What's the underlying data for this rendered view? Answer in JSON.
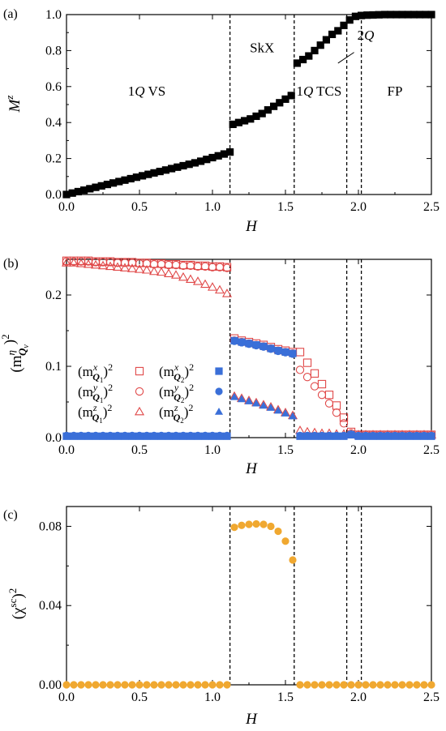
{
  "chart_data": [
    {
      "type": "scatter",
      "panel_label": "(a)",
      "xlabel": "H",
      "ylabel": "M",
      "ylabel_sup": "z",
      "xlim": [
        0.0,
        2.5
      ],
      "ylim": [
        0.0,
        1.0
      ],
      "xticks": [
        "0.0",
        "0.5",
        "1.0",
        "1.5",
        "2.0",
        "2.5"
      ],
      "yticks": [
        "0.0",
        "0.2",
        "0.4",
        "0.6",
        "0.8",
        "1.0"
      ],
      "ytick_values": [
        0.0,
        0.2,
        0.4,
        0.6,
        0.8,
        1.0
      ],
      "boundaries": [
        1.12,
        1.56,
        1.92,
        2.02
      ],
      "annotations": [
        {
          "text": "1",
          "italic": "Q",
          "rest": " VS",
          "x": 0.55,
          "y": 0.55
        },
        {
          "text": "SkX",
          "italic": "",
          "rest": "",
          "x": 1.34,
          "y": 0.79
        },
        {
          "text": "1",
          "italic": "Q",
          "rest": " TCS",
          "x": 1.73,
          "y": 0.55
        },
        {
          "text": "2",
          "italic": "Q",
          "rest": "",
          "x": 2.05,
          "y": 0.86
        },
        {
          "text": "FP",
          "italic": "",
          "rest": "",
          "x": 2.25,
          "y": 0.55
        }
      ],
      "series": [
        {
          "name": "M^z",
          "marker": "filled-square",
          "color": "#000000",
          "x": [
            0.0,
            0.04,
            0.08,
            0.12,
            0.16,
            0.2,
            0.24,
            0.28,
            0.32,
            0.36,
            0.4,
            0.44,
            0.48,
            0.52,
            0.56,
            0.6,
            0.64,
            0.68,
            0.72,
            0.76,
            0.8,
            0.84,
            0.88,
            0.92,
            0.96,
            1.0,
            1.04,
            1.08,
            1.12,
            1.14,
            1.18,
            1.22,
            1.26,
            1.3,
            1.34,
            1.38,
            1.42,
            1.46,
            1.5,
            1.54,
            1.58,
            1.62,
            1.66,
            1.7,
            1.74,
            1.78,
            1.82,
            1.86,
            1.9,
            1.94,
            1.98,
            2.02,
            2.06,
            2.1,
            2.14,
            2.18,
            2.22,
            2.26,
            2.3,
            2.34,
            2.38,
            2.42,
            2.46,
            2.5
          ],
          "y": [
            0.0,
            0.008,
            0.016,
            0.024,
            0.032,
            0.04,
            0.048,
            0.056,
            0.064,
            0.072,
            0.08,
            0.088,
            0.096,
            0.104,
            0.112,
            0.12,
            0.128,
            0.136,
            0.144,
            0.152,
            0.16,
            0.168,
            0.176,
            0.185,
            0.195,
            0.205,
            0.215,
            0.225,
            0.236,
            0.39,
            0.4,
            0.41,
            0.42,
            0.435,
            0.45,
            0.47,
            0.49,
            0.51,
            0.53,
            0.55,
            0.73,
            0.75,
            0.77,
            0.8,
            0.83,
            0.86,
            0.89,
            0.91,
            0.94,
            0.97,
            0.99,
            0.995,
            0.997,
            0.998,
            0.999,
            1.0,
            1.0,
            1.0,
            1.0,
            1.0,
            1.0,
            1.0,
            1.0,
            1.0
          ]
        }
      ]
    },
    {
      "type": "scatter",
      "panel_label": "(b)",
      "xlabel": "H",
      "ylabel": "(m",
      "xlim": [
        0.0,
        2.5
      ],
      "ylim": [
        0.0,
        0.25
      ],
      "xticks": [
        "0.0",
        "0.5",
        "1.0",
        "1.5",
        "2.0",
        "2.5"
      ],
      "yticks": [
        "0.0",
        "0.1",
        "0.2"
      ],
      "ytick_values": [
        0.0,
        0.1,
        0.2
      ],
      "boundaries": [
        1.12,
        1.56,
        1.92,
        2.02
      ],
      "legend_position": "center-left",
      "series": [
        {
          "name": "(m^x_Q1)^2",
          "legend_sup": "x",
          "legend_sub": "1",
          "marker": "open-square",
          "color": "#e04848",
          "x": [
            0.0,
            0.05,
            0.1,
            0.15,
            0.2,
            0.25,
            0.3,
            0.35,
            0.4,
            0.45,
            0.5,
            0.55,
            0.6,
            0.65,
            0.7,
            0.75,
            0.8,
            0.85,
            0.9,
            0.95,
            1.0,
            1.05,
            1.1,
            1.15,
            1.2,
            1.25,
            1.3,
            1.35,
            1.4,
            1.45,
            1.5,
            1.55,
            1.6,
            1.65,
            1.7,
            1.75,
            1.8,
            1.85,
            1.9,
            1.95,
            2.0,
            2.05,
            2.1,
            2.15,
            2.2,
            2.25,
            2.3,
            2.35,
            2.4,
            2.45,
            2.5
          ],
          "y": [
            0.248,
            0.248,
            0.248,
            0.248,
            0.247,
            0.247,
            0.247,
            0.246,
            0.246,
            0.246,
            0.245,
            0.245,
            0.244,
            0.244,
            0.243,
            0.243,
            0.242,
            0.242,
            0.241,
            0.241,
            0.24,
            0.24,
            0.239,
            0.139,
            0.136,
            0.134,
            0.132,
            0.13,
            0.127,
            0.124,
            0.122,
            0.12,
            0.12,
            0.105,
            0.09,
            0.075,
            0.06,
            0.045,
            0.028,
            0.008,
            0.004,
            0.004,
            0.004,
            0.004,
            0.004,
            0.004,
            0.004,
            0.004,
            0.004,
            0.004,
            0.004
          ]
        },
        {
          "name": "(m^y_Q1)^2",
          "legend_sup": "y",
          "legend_sub": "1",
          "marker": "open-circle",
          "color": "#e04848",
          "x": [
            0.0,
            0.05,
            0.1,
            0.15,
            0.2,
            0.25,
            0.3,
            0.35,
            0.4,
            0.45,
            0.5,
            0.55,
            0.6,
            0.65,
            0.7,
            0.75,
            0.8,
            0.85,
            0.9,
            0.95,
            1.0,
            1.05,
            1.1,
            1.15,
            1.2,
            1.25,
            1.3,
            1.35,
            1.4,
            1.45,
            1.5,
            1.55,
            1.6,
            1.65,
            1.7,
            1.75,
            1.8,
            1.85,
            1.9,
            1.95,
            2.0,
            2.05,
            2.1,
            2.15,
            2.2,
            2.25,
            2.3,
            2.35,
            2.4,
            2.45,
            2.5
          ],
          "y": [
            0.247,
            0.247,
            0.247,
            0.247,
            0.246,
            0.246,
            0.246,
            0.245,
            0.245,
            0.245,
            0.244,
            0.244,
            0.243,
            0.243,
            0.242,
            0.242,
            0.241,
            0.241,
            0.24,
            0.24,
            0.239,
            0.239,
            0.238,
            0.136,
            0.134,
            0.132,
            0.13,
            0.128,
            0.125,
            0.122,
            0.12,
            0.118,
            0.095,
            0.085,
            0.072,
            0.06,
            0.048,
            0.035,
            0.02,
            0.006,
            0.004,
            0.004,
            0.004,
            0.004,
            0.004,
            0.004,
            0.004,
            0.004,
            0.004,
            0.004,
            0.004
          ]
        },
        {
          "name": "(m^z_Q1)^2",
          "legend_sup": "z",
          "legend_sub": "1",
          "marker": "open-triangle",
          "color": "#e04848",
          "x": [
            0.0,
            0.05,
            0.1,
            0.15,
            0.2,
            0.25,
            0.3,
            0.35,
            0.4,
            0.45,
            0.5,
            0.55,
            0.6,
            0.65,
            0.7,
            0.75,
            0.8,
            0.85,
            0.9,
            0.95,
            1.0,
            1.05,
            1.1,
            1.15,
            1.2,
            1.25,
            1.3,
            1.35,
            1.4,
            1.45,
            1.5,
            1.55,
            1.6,
            1.65,
            1.7,
            1.75,
            1.8,
            1.85,
            1.9,
            1.95,
            2.0,
            2.05,
            2.1,
            2.15,
            2.2,
            2.25,
            2.3,
            2.35,
            2.4,
            2.45,
            2.5
          ],
          "y": [
            0.245,
            0.245,
            0.244,
            0.243,
            0.242,
            0.241,
            0.24,
            0.239,
            0.238,
            0.237,
            0.236,
            0.235,
            0.233,
            0.232,
            0.23,
            0.228,
            0.225,
            0.222,
            0.219,
            0.215,
            0.211,
            0.207,
            0.202,
            0.058,
            0.055,
            0.052,
            0.049,
            0.046,
            0.043,
            0.039,
            0.035,
            0.031,
            0.01,
            0.008,
            0.007,
            0.006,
            0.006,
            0.005,
            0.005,
            0.005,
            0.004,
            0.004,
            0.004,
            0.004,
            0.004,
            0.004,
            0.004,
            0.004,
            0.004,
            0.004,
            0.004
          ]
        },
        {
          "name": "(m^x_Q2)^2",
          "legend_sup": "x",
          "legend_sub": "2",
          "marker": "filled-square",
          "color": "#3a6fd8",
          "x": [
            0.0,
            0.05,
            0.1,
            0.15,
            0.2,
            0.25,
            0.3,
            0.35,
            0.4,
            0.45,
            0.5,
            0.55,
            0.6,
            0.65,
            0.7,
            0.75,
            0.8,
            0.85,
            0.9,
            0.95,
            1.0,
            1.05,
            1.1,
            1.15,
            1.2,
            1.25,
            1.3,
            1.35,
            1.4,
            1.45,
            1.5,
            1.55,
            1.6,
            1.65,
            1.7,
            1.75,
            1.8,
            1.85,
            1.9,
            1.95,
            2.0,
            2.05,
            2.1,
            2.15,
            2.2,
            2.25,
            2.3,
            2.35,
            2.4,
            2.45,
            2.5
          ],
          "y": [
            0.002,
            0.002,
            0.002,
            0.002,
            0.002,
            0.002,
            0.002,
            0.002,
            0.002,
            0.002,
            0.002,
            0.002,
            0.002,
            0.002,
            0.002,
            0.002,
            0.002,
            0.002,
            0.002,
            0.002,
            0.002,
            0.002,
            0.002,
            0.136,
            0.134,
            0.132,
            0.13,
            0.128,
            0.125,
            0.122,
            0.12,
            0.118,
            0.002,
            0.002,
            0.002,
            0.002,
            0.002,
            0.002,
            0.002,
            0.004,
            0.002,
            0.002,
            0.002,
            0.002,
            0.002,
            0.002,
            0.002,
            0.002,
            0.002,
            0.002,
            0.002
          ]
        },
        {
          "name": "(m^y_Q2)^2",
          "legend_sup": "y",
          "legend_sub": "2",
          "marker": "filled-circle",
          "color": "#3a6fd8",
          "x": [
            0.0,
            0.05,
            0.1,
            0.15,
            0.2,
            0.25,
            0.3,
            0.35,
            0.4,
            0.45,
            0.5,
            0.55,
            0.6,
            0.65,
            0.7,
            0.75,
            0.8,
            0.85,
            0.9,
            0.95,
            1.0,
            1.05,
            1.1,
            1.15,
            1.2,
            1.25,
            1.3,
            1.35,
            1.4,
            1.45,
            1.5,
            1.55,
            1.6,
            1.65,
            1.7,
            1.75,
            1.8,
            1.85,
            1.9,
            1.95,
            2.0,
            2.05,
            2.1,
            2.15,
            2.2,
            2.25,
            2.3,
            2.35,
            2.4,
            2.45,
            2.5
          ],
          "y": [
            0.003,
            0.003,
            0.003,
            0.003,
            0.003,
            0.003,
            0.003,
            0.003,
            0.003,
            0.003,
            0.003,
            0.003,
            0.003,
            0.003,
            0.003,
            0.003,
            0.003,
            0.003,
            0.003,
            0.003,
            0.003,
            0.003,
            0.003,
            0.135,
            0.133,
            0.131,
            0.129,
            0.127,
            0.124,
            0.121,
            0.119,
            0.117,
            0.003,
            0.003,
            0.003,
            0.003,
            0.003,
            0.003,
            0.003,
            0.005,
            0.003,
            0.003,
            0.003,
            0.003,
            0.003,
            0.003,
            0.003,
            0.003,
            0.003,
            0.003,
            0.003
          ]
        },
        {
          "name": "(m^z_Q2)^2",
          "legend_sup": "z",
          "legend_sub": "2",
          "marker": "filled-triangle",
          "color": "#3a6fd8",
          "x": [
            1.15,
            1.2,
            1.25,
            1.3,
            1.35,
            1.4,
            1.45,
            1.5,
            1.55
          ],
          "y": [
            0.057,
            0.054,
            0.051,
            0.048,
            0.045,
            0.042,
            0.038,
            0.034,
            0.03
          ]
        }
      ]
    },
    {
      "type": "scatter",
      "panel_label": "(c)",
      "xlabel": "H",
      "ylabel": "(χ",
      "ylabel_sup": "sc",
      "ylabel_tail": ")",
      "ylabel_tail_sup": "2",
      "xlim": [
        0.0,
        2.5
      ],
      "ylim": [
        0.0,
        0.09
      ],
      "xticks": [
        "0.0",
        "0.5",
        "1.0",
        "1.5",
        "2.0",
        "2.5"
      ],
      "yticks": [
        "0.00",
        "0.04",
        "0.08"
      ],
      "ytick_values": [
        0.0,
        0.04,
        0.08
      ],
      "boundaries": [
        1.12,
        1.56,
        1.92,
        2.02
      ],
      "series": [
        {
          "name": "(χ^sc)^2",
          "marker": "filled-circle",
          "color": "#f0a830",
          "x": [
            0.0,
            0.05,
            0.1,
            0.15,
            0.2,
            0.25,
            0.3,
            0.35,
            0.4,
            0.45,
            0.5,
            0.55,
            0.6,
            0.65,
            0.7,
            0.75,
            0.8,
            0.85,
            0.9,
            0.95,
            1.0,
            1.05,
            1.1,
            1.15,
            1.2,
            1.25,
            1.3,
            1.35,
            1.4,
            1.45,
            1.5,
            1.55,
            1.6,
            1.65,
            1.7,
            1.75,
            1.8,
            1.85,
            1.9,
            1.95,
            2.0,
            2.05,
            2.1,
            2.15,
            2.2,
            2.25,
            2.3,
            2.35,
            2.4,
            2.45,
            2.5
          ],
          "y": [
            0,
            0,
            0,
            0,
            0,
            0,
            0,
            0,
            0,
            0,
            0,
            0,
            0,
            0,
            0,
            0,
            0,
            0,
            0,
            0,
            0,
            0,
            0,
            0.0795,
            0.0805,
            0.081,
            0.0812,
            0.081,
            0.08,
            0.0775,
            0.0725,
            0.063,
            0,
            0,
            0,
            0,
            0,
            0,
            0,
            0,
            0,
            0,
            0,
            0,
            0,
            0,
            0,
            0,
            0,
            0,
            0
          ]
        }
      ]
    }
  ]
}
